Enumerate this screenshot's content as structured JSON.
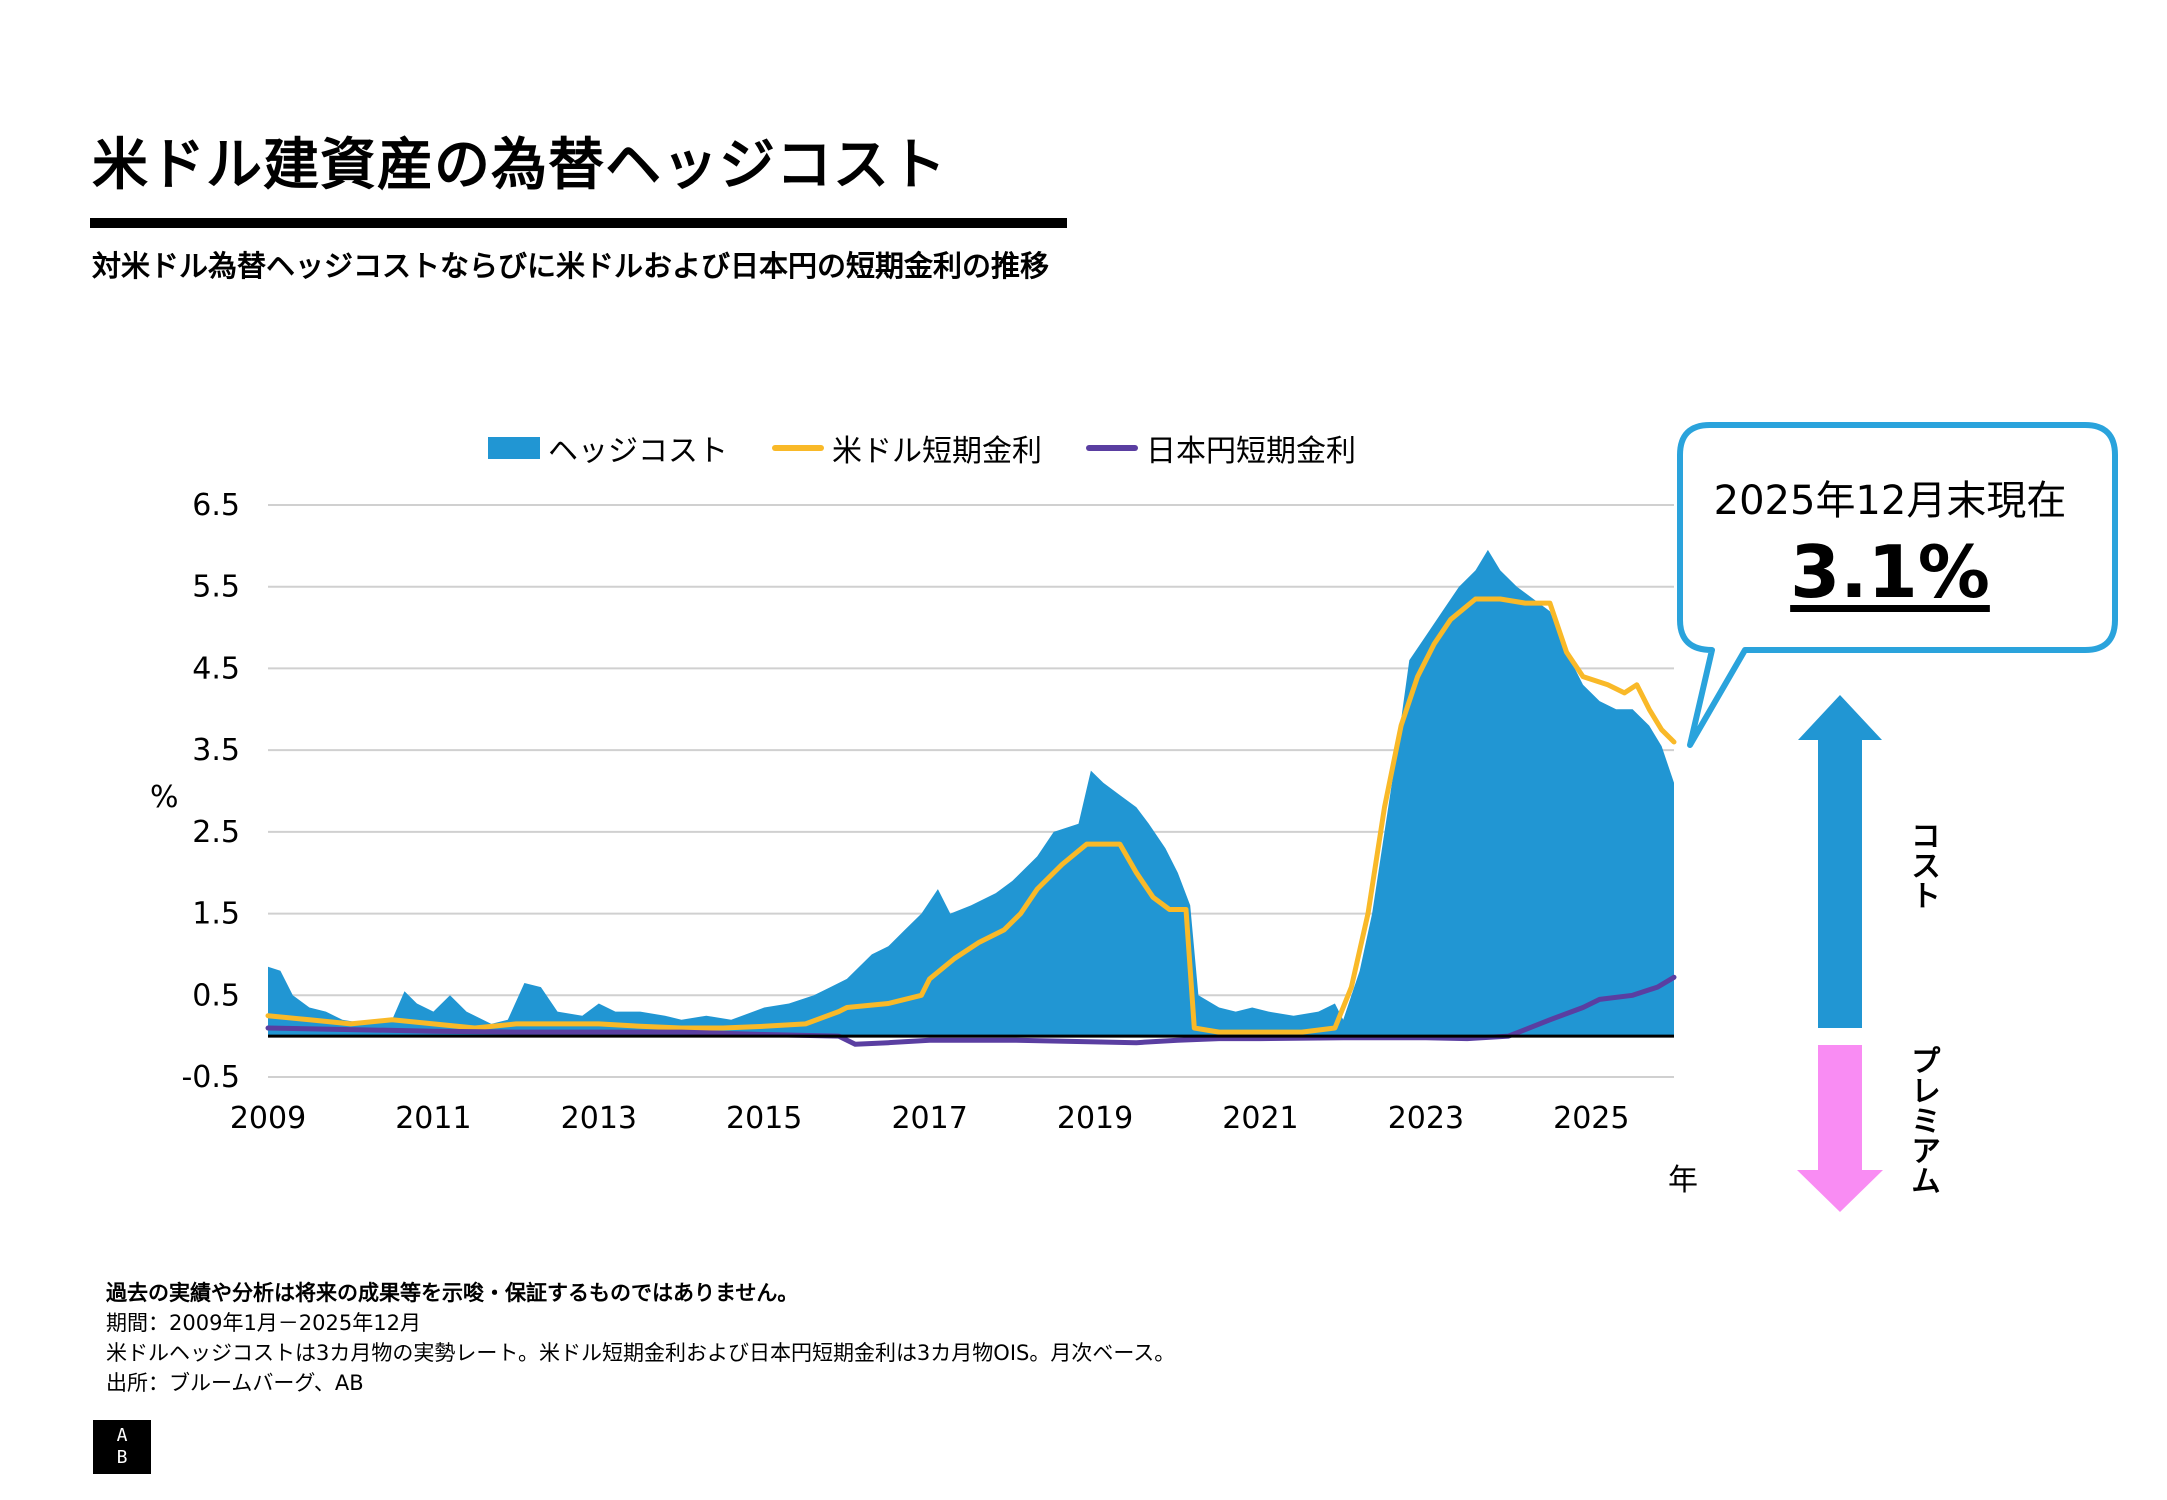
{
  "header": {
    "title": "米ドル建資産の為替ヘッジコスト",
    "subtitle": "対米ドル為替ヘッジコストならびに米ドルおよび日本円の短期金利の推移"
  },
  "legend": {
    "items": [
      {
        "label": "ヘッジコスト",
        "color": "#2196d3",
        "kind": "area"
      },
      {
        "label": "米ドル短期金利",
        "color": "#f9b928",
        "kind": "line"
      },
      {
        "label": "日本円短期金利",
        "color": "#5a3ea1",
        "kind": "line"
      }
    ]
  },
  "callout": {
    "line1": "2025年12月末現在",
    "value": "3.1%",
    "border_color": "#2aa3dc"
  },
  "side_arrows": {
    "cost_label": "コスト",
    "premium_label": "プレミアム",
    "cost_color": "#2196d3",
    "premium_color": "#f98cf3"
  },
  "axis_units": {
    "y": "%",
    "x": "年"
  },
  "notes": {
    "disclaimer": "過去の実績や分析は将来の成果等を示唆・保証するものではありません。",
    "period": "期間：2009年1月－2025年12月",
    "definition": "米ドルヘッジコストは3カ月物の実勢レート。米ドル短期金利および日本円短期金利は3カ月物OIS。月次ベース。",
    "source": "出所：ブルームバーグ、AB"
  },
  "logo": {
    "top": "A",
    "bottom": "B"
  },
  "chart_data": {
    "type": "area",
    "ylabel": "%",
    "xlabel": "年",
    "ylim": [
      -0.5,
      6.5
    ],
    "yticks": [
      -0.5,
      0.5,
      1.5,
      2.5,
      3.5,
      4.5,
      5.5,
      6.5
    ],
    "xlim": [
      2009.0,
      2026.0
    ],
    "xticks": [
      2009,
      2011,
      2013,
      2015,
      2017,
      2019,
      2021,
      2023,
      2025
    ],
    "grid": true,
    "legend_position": "top",
    "series": [
      {
        "name": "ヘッジコスト",
        "type": "area",
        "color": "#2196d3",
        "points": [
          [
            2009.0,
            0.85
          ],
          [
            2009.15,
            0.8
          ],
          [
            2009.3,
            0.5
          ],
          [
            2009.5,
            0.35
          ],
          [
            2009.7,
            0.3
          ],
          [
            2009.9,
            0.2
          ],
          [
            2010.2,
            0.15
          ],
          [
            2010.5,
            0.2
          ],
          [
            2010.65,
            0.55
          ],
          [
            2010.8,
            0.4
          ],
          [
            2011.0,
            0.3
          ],
          [
            2011.2,
            0.5
          ],
          [
            2011.4,
            0.3
          ],
          [
            2011.7,
            0.15
          ],
          [
            2011.9,
            0.2
          ],
          [
            2012.1,
            0.65
          ],
          [
            2012.3,
            0.6
          ],
          [
            2012.5,
            0.3
          ],
          [
            2012.8,
            0.25
          ],
          [
            2013.0,
            0.4
          ],
          [
            2013.2,
            0.3
          ],
          [
            2013.5,
            0.3
          ],
          [
            2013.8,
            0.25
          ],
          [
            2014.0,
            0.2
          ],
          [
            2014.3,
            0.25
          ],
          [
            2014.6,
            0.2
          ],
          [
            2015.0,
            0.35
          ],
          [
            2015.3,
            0.4
          ],
          [
            2015.6,
            0.5
          ],
          [
            2015.8,
            0.6
          ],
          [
            2016.0,
            0.7
          ],
          [
            2016.3,
            1.0
          ],
          [
            2016.5,
            1.1
          ],
          [
            2016.7,
            1.3
          ],
          [
            2016.9,
            1.5
          ],
          [
            2017.1,
            1.8
          ],
          [
            2017.25,
            1.5
          ],
          [
            2017.5,
            1.6
          ],
          [
            2017.8,
            1.75
          ],
          [
            2018.0,
            1.9
          ],
          [
            2018.3,
            2.2
          ],
          [
            2018.5,
            2.5
          ],
          [
            2018.8,
            2.6
          ],
          [
            2018.95,
            3.25
          ],
          [
            2019.1,
            3.1
          ],
          [
            2019.3,
            2.95
          ],
          [
            2019.5,
            2.8
          ],
          [
            2019.65,
            2.6
          ],
          [
            2019.85,
            2.3
          ],
          [
            2020.0,
            2.0
          ],
          [
            2020.15,
            1.6
          ],
          [
            2020.25,
            0.5
          ],
          [
            2020.5,
            0.35
          ],
          [
            2020.7,
            0.3
          ],
          [
            2020.9,
            0.35
          ],
          [
            2021.1,
            0.3
          ],
          [
            2021.4,
            0.25
          ],
          [
            2021.7,
            0.3
          ],
          [
            2021.9,
            0.4
          ],
          [
            2022.0,
            0.2
          ],
          [
            2022.2,
            0.8
          ],
          [
            2022.35,
            1.5
          ],
          [
            2022.5,
            2.5
          ],
          [
            2022.65,
            3.5
          ],
          [
            2022.8,
            4.6
          ],
          [
            2023.0,
            4.9
          ],
          [
            2023.2,
            5.2
          ],
          [
            2023.4,
            5.5
          ],
          [
            2023.6,
            5.7
          ],
          [
            2023.75,
            5.95
          ],
          [
            2023.9,
            5.7
          ],
          [
            2024.1,
            5.5
          ],
          [
            2024.3,
            5.35
          ],
          [
            2024.5,
            5.2
          ],
          [
            2024.7,
            4.7
          ],
          [
            2024.9,
            4.3
          ],
          [
            2025.1,
            4.1
          ],
          [
            2025.3,
            4.0
          ],
          [
            2025.5,
            4.0
          ],
          [
            2025.7,
            3.8
          ],
          [
            2025.85,
            3.55
          ],
          [
            2026.0,
            3.1
          ]
        ]
      },
      {
        "name": "米ドル短期金利",
        "type": "line",
        "color": "#f9b928",
        "points": [
          [
            2009.0,
            0.25
          ],
          [
            2009.5,
            0.2
          ],
          [
            2010.0,
            0.15
          ],
          [
            2010.5,
            0.2
          ],
          [
            2011.0,
            0.15
          ],
          [
            2011.5,
            0.1
          ],
          [
            2012.0,
            0.15
          ],
          [
            2012.5,
            0.15
          ],
          [
            2013.0,
            0.15
          ],
          [
            2013.5,
            0.12
          ],
          [
            2014.0,
            0.1
          ],
          [
            2014.5,
            0.1
          ],
          [
            2015.0,
            0.12
          ],
          [
            2015.5,
            0.15
          ],
          [
            2015.9,
            0.3
          ],
          [
            2016.0,
            0.35
          ],
          [
            2016.5,
            0.4
          ],
          [
            2016.9,
            0.5
          ],
          [
            2017.0,
            0.7
          ],
          [
            2017.3,
            0.95
          ],
          [
            2017.6,
            1.15
          ],
          [
            2017.9,
            1.3
          ],
          [
            2018.1,
            1.5
          ],
          [
            2018.3,
            1.8
          ],
          [
            2018.6,
            2.1
          ],
          [
            2018.9,
            2.35
          ],
          [
            2019.3,
            2.35
          ],
          [
            2019.5,
            2.0
          ],
          [
            2019.7,
            1.7
          ],
          [
            2019.9,
            1.55
          ],
          [
            2020.1,
            1.55
          ],
          [
            2020.2,
            0.1
          ],
          [
            2020.5,
            0.05
          ],
          [
            2021.0,
            0.05
          ],
          [
            2021.5,
            0.05
          ],
          [
            2021.9,
            0.1
          ],
          [
            2022.1,
            0.6
          ],
          [
            2022.3,
            1.5
          ],
          [
            2022.5,
            2.8
          ],
          [
            2022.7,
            3.8
          ],
          [
            2022.9,
            4.4
          ],
          [
            2023.1,
            4.8
          ],
          [
            2023.3,
            5.1
          ],
          [
            2023.6,
            5.35
          ],
          [
            2023.9,
            5.35
          ],
          [
            2024.2,
            5.3
          ],
          [
            2024.5,
            5.3
          ],
          [
            2024.7,
            4.7
          ],
          [
            2024.9,
            4.4
          ],
          [
            2025.2,
            4.3
          ],
          [
            2025.4,
            4.2
          ],
          [
            2025.55,
            4.3
          ],
          [
            2025.7,
            4.0
          ],
          [
            2025.85,
            3.75
          ],
          [
            2026.0,
            3.6
          ]
        ]
      },
      {
        "name": "日本円短期金利",
        "type": "line",
        "color": "#5a3ea1",
        "points": [
          [
            2009.0,
            0.1
          ],
          [
            2010.0,
            0.08
          ],
          [
            2011.0,
            0.06
          ],
          [
            2012.0,
            0.05
          ],
          [
            2013.0,
            0.05
          ],
          [
            2014.0,
            0.05
          ],
          [
            2015.0,
            0.02
          ],
          [
            2015.9,
            0.0
          ],
          [
            2016.1,
            -0.1
          ],
          [
            2016.5,
            -0.08
          ],
          [
            2017.0,
            -0.05
          ],
          [
            2018.0,
            -0.05
          ],
          [
            2019.0,
            -0.07
          ],
          [
            2019.5,
            -0.08
          ],
          [
            2020.0,
            -0.05
          ],
          [
            2020.5,
            -0.03
          ],
          [
            2021.0,
            -0.03
          ],
          [
            2022.0,
            -0.02
          ],
          [
            2023.0,
            -0.02
          ],
          [
            2023.5,
            -0.03
          ],
          [
            2024.0,
            0.0
          ],
          [
            2024.5,
            0.2
          ],
          [
            2024.9,
            0.35
          ],
          [
            2025.1,
            0.45
          ],
          [
            2025.5,
            0.5
          ],
          [
            2025.8,
            0.6
          ],
          [
            2026.0,
            0.72
          ]
        ]
      }
    ]
  }
}
